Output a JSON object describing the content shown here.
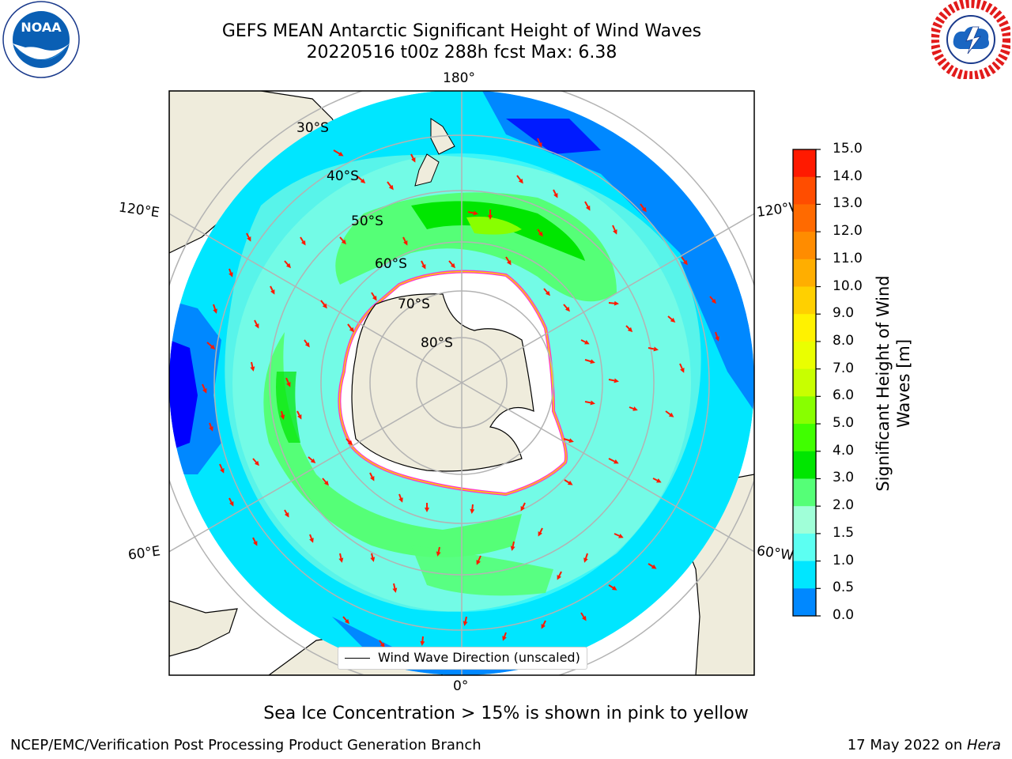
{
  "title_line1": "GEFS MEAN Antarctic Significant Height of Wind Waves",
  "title_line2": "20220516 t00z 288h fcst   Max: 6.38",
  "map": {
    "lon_labels": {
      "top": "180°",
      "bottom": "0°",
      "left_upper": "120°E",
      "left_lower": "60°E",
      "right_upper": "120°W",
      "right_lower": "60°W"
    },
    "lat_labels": [
      "30°S",
      "40°S",
      "50°S",
      "60°S",
      "70°S",
      "80°S"
    ],
    "legend": "Wind Wave Direction (unscaled)"
  },
  "colorbar": {
    "label": "Significant Height of Wind Waves [m]",
    "ticks": [
      "15.0",
      "14.0",
      "13.0",
      "12.0",
      "11.0",
      "10.0",
      "9.0",
      "8.0",
      "7.0",
      "6.0",
      "5.0",
      "4.0",
      "3.0",
      "2.0",
      "1.5",
      "1.0",
      "0.5",
      "0.0"
    ],
    "colors": [
      "#ff1a00",
      "#ff4d00",
      "#ff6a00",
      "#ff8c00",
      "#ffae00",
      "#ffd000",
      "#fff200",
      "#eaff00",
      "#c8ff00",
      "#88ff00",
      "#40ff00",
      "#00e600",
      "#55ff77",
      "#a0ffd8",
      "#5cfff2",
      "#00e6ff",
      "#0088ff",
      "#0000ff"
    ]
  },
  "caption": "Sea Ice Concentration > 15% is shown in pink to yellow",
  "footer_left": "NCEP/EMC/Verification Post Processing Product Generation Branch",
  "footer_right_date": "17 May 2022 on ",
  "footer_right_host": "Hera",
  "logos": {
    "left": "NOAA",
    "right": "NATIONAL WEATHER SERVICE"
  },
  "colors": {
    "land": "#efecdc",
    "ice": "#ffffff",
    "grid": "#b3b3b3",
    "arrow": "#ff1a00",
    "ice_edge": "#ff33cc"
  }
}
